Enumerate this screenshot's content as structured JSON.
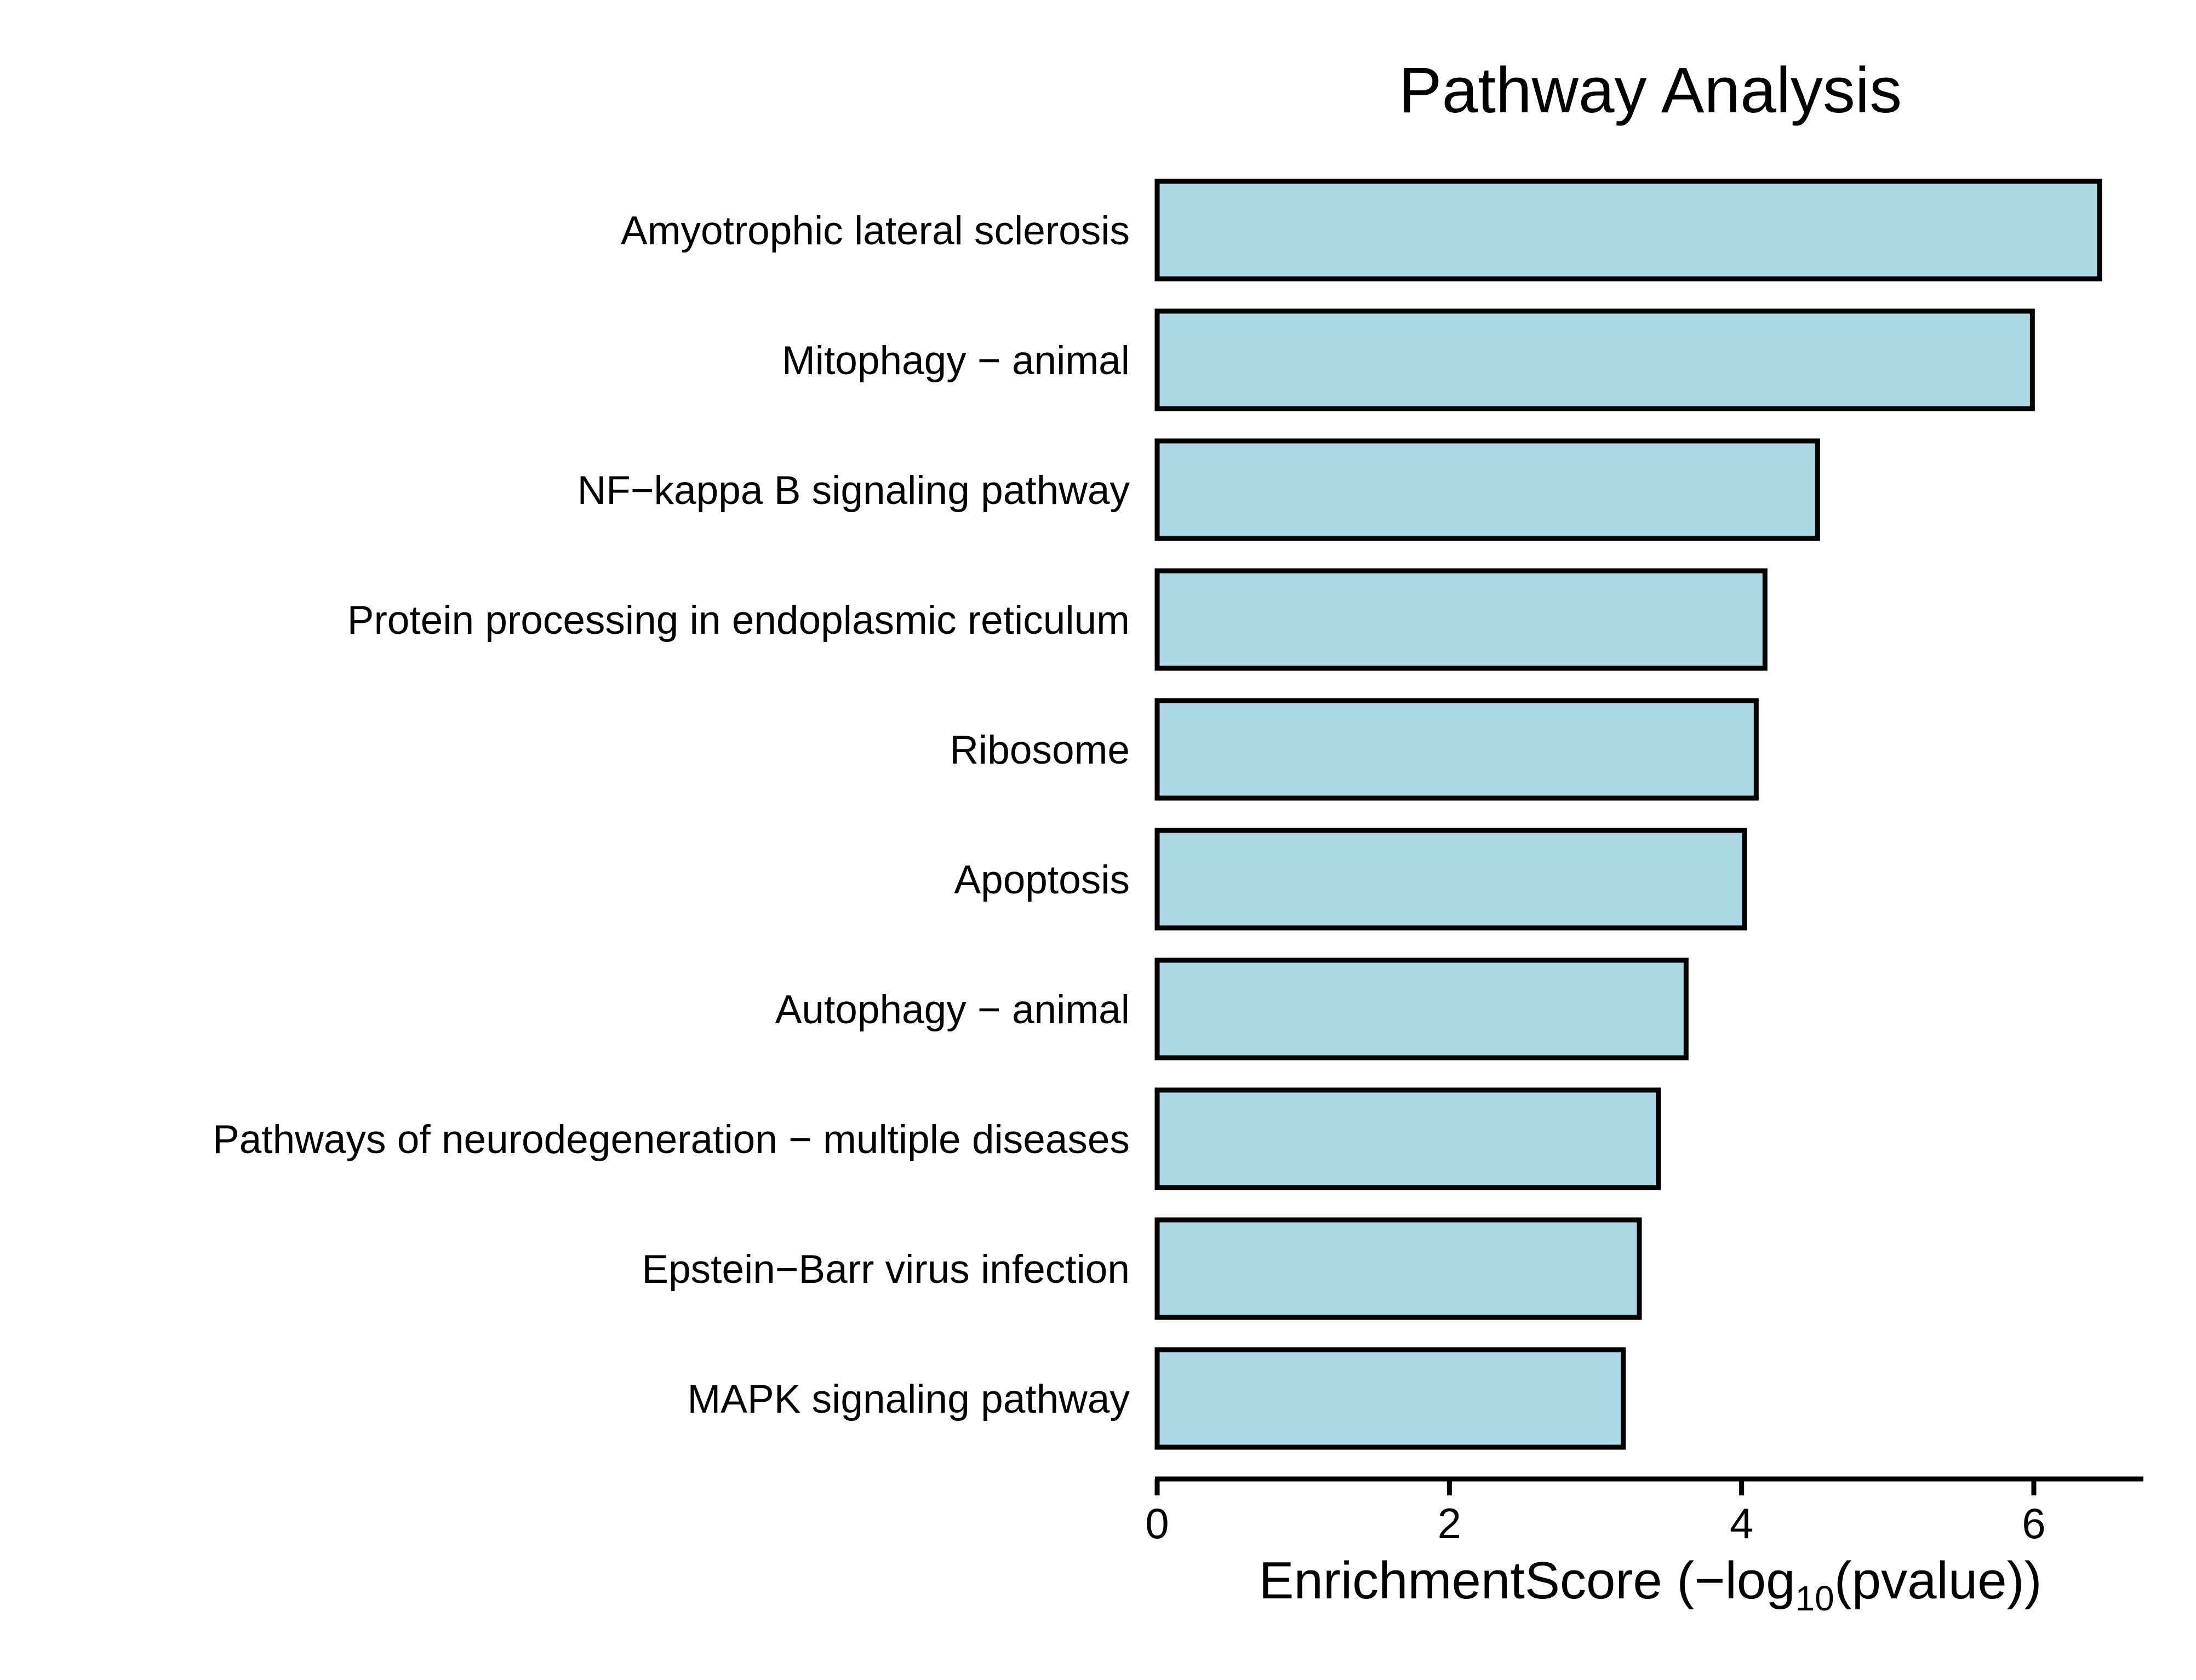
{
  "chart_data": {
    "type": "bar",
    "orientation": "horizontal",
    "title": "Pathway Analysis",
    "xlabel_prefix": "EnrichmentScore (−log",
    "xlabel_subscript": "10",
    "xlabel_suffix": "(pvalue))",
    "categories": [
      "Amyotrophic lateral sclerosis",
      "Mitophagy − animal",
      "NF−kappa B signaling pathway",
      "Protein processing in endoplasmic reticulum",
      "Ribosome",
      "Apoptosis",
      "Autophagy − animal",
      "Pathways of neurodegeneration − multiple diseases",
      "Epstein−Barr virus infection",
      "MAPK signaling pathway"
    ],
    "values": [
      6.45,
      5.99,
      4.52,
      4.16,
      4.1,
      4.02,
      3.62,
      3.43,
      3.3,
      3.19
    ],
    "xlim": [
      0,
      6.75
    ],
    "xticks": [
      0,
      2,
      4,
      6
    ],
    "xtick_labels": [
      "0",
      "2",
      "4",
      "6"
    ],
    "grid": false,
    "bar_color": "#add8e6",
    "bar_edge_color": "#000000"
  }
}
